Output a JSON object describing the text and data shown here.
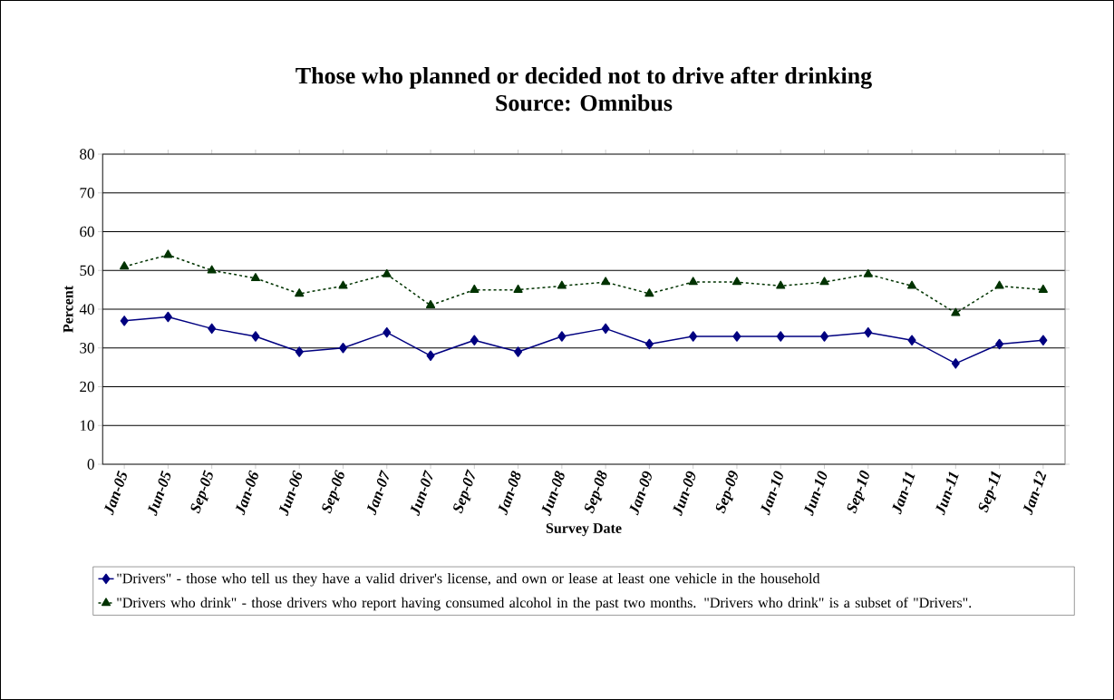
{
  "chart_data": {
    "type": "line",
    "title": "Those who planned or decided not to drive after drinking",
    "subtitle": "Source: Omnibus",
    "xlabel": "Survey Date",
    "ylabel": "Percent",
    "categories": [
      "Jan-05",
      "Jun-05",
      "Sep-05",
      "Jan-06",
      "Jun-06",
      "Sep-06",
      "Jan-07",
      "Jun-07",
      "Sep-07",
      "Jan-08",
      "Jun-08",
      "Sep-08",
      "Jan-09",
      "Jun-09",
      "Sep-09",
      "Jan-10",
      "Jun-10",
      "Sep-10",
      "Jan-11",
      "Jun-11",
      "Sep-11",
      "Jan-12"
    ],
    "series": [
      {
        "name": "\"Drivers\" - those who tell us they have a valid driver's license, and own or lease at least one vehicle in the household",
        "color": "#000080",
        "marker": "diamond",
        "line_style": "solid",
        "values": [
          37,
          38,
          35,
          33,
          29,
          30,
          34,
          28,
          32,
          29,
          33,
          35,
          31,
          33,
          33,
          33,
          33,
          34,
          32,
          26,
          31,
          32
        ]
      },
      {
        "name": "\"Drivers who drink\" - those drivers who report having consumed alcohol in the past two months. \"Drivers who drink\" is a subset of \"Drivers\".",
        "color": "#003300",
        "marker": "triangle",
        "line_style": "dashed",
        "values": [
          51,
          54,
          50,
          48,
          44,
          46,
          49,
          41,
          45,
          45,
          46,
          47,
          44,
          47,
          47,
          46,
          47,
          49,
          46,
          39,
          46,
          45
        ]
      }
    ],
    "ylim": [
      0,
      80
    ],
    "yticks": [
      0,
      10,
      20,
      30,
      40,
      50,
      60,
      70,
      80
    ],
    "grid": "y",
    "legend": "bottom"
  }
}
